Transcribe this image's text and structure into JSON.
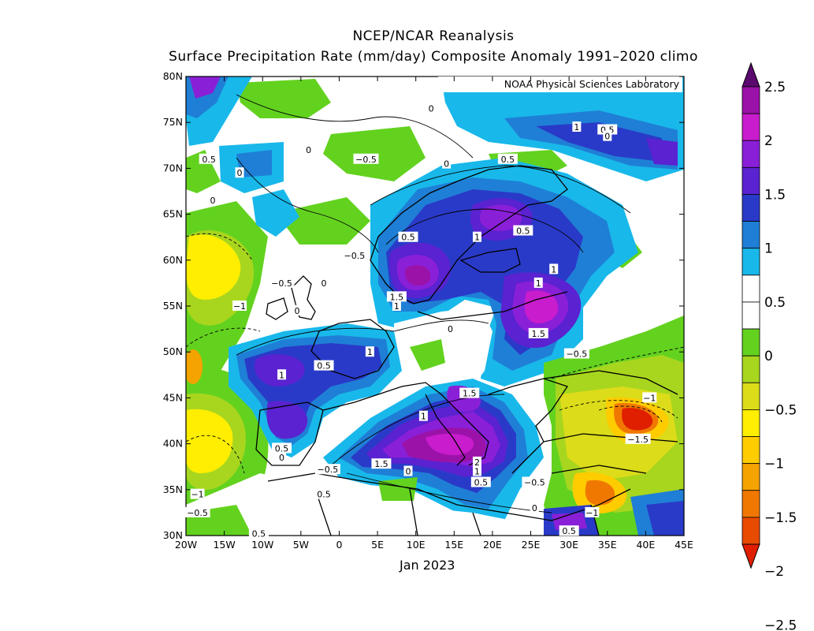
{
  "title": {
    "line1": "NCEP/NCAR Reanalysis",
    "line2": "Surface Precipitation Rate (mm/day) Composite Anomaly 1991–2020 climo"
  },
  "credit": "NOAA Physical Sciences Laboratory",
  "period": "Jan 2023",
  "map": {
    "lat_ticks": [
      "80N",
      "75N",
      "70N",
      "65N",
      "60N",
      "55N",
      "50N",
      "45N",
      "40N",
      "35N",
      "30N"
    ],
    "lon_ticks": [
      "20W",
      "15W",
      "10W",
      "5W",
      "0",
      "5E",
      "10E",
      "15E",
      "20E",
      "25E",
      "30E",
      "35E",
      "40E",
      "45E"
    ],
    "lon_range": [
      -20,
      45
    ],
    "lat_range": [
      30,
      80
    ]
  },
  "colorbar": {
    "labels": [
      "2.5",
      "2",
      "1.5",
      "1",
      "0.5",
      "0",
      "−0.5",
      "−1",
      "−1.5",
      "−2",
      "−2.5"
    ],
    "colors": [
      "#5a0a6e",
      "#9b12a8",
      "#c81ccd",
      "#8a1fd8",
      "#5a22d0",
      "#2a3ac8",
      "#1f7fd6",
      "#19b8ea",
      "#ffffff",
      "#ffffff",
      "#63d21f",
      "#a8d61e",
      "#dcdc1a",
      "#ffee00",
      "#ffcc00",
      "#f5a300",
      "#f07800",
      "#e84a00",
      "#e01e00"
    ]
  },
  "contour_labels": [
    {
      "t": "0.5",
      "lon": -17,
      "lat": 71
    },
    {
      "t": "0",
      "lon": -13,
      "lat": 69.5
    },
    {
      "t": "0",
      "lon": -16.5,
      "lat": 66.5
    },
    {
      "t": "0",
      "lon": -4,
      "lat": 72
    },
    {
      "t": "−0.5",
      "lon": 3.5,
      "lat": 71
    },
    {
      "t": "0",
      "lon": 12,
      "lat": 76.5
    },
    {
      "t": "0",
      "lon": 14,
      "lat": 70.5
    },
    {
      "t": "0.5",
      "lon": 22,
      "lat": 71
    },
    {
      "t": "1",
      "lon": 31,
      "lat": 74.5
    },
    {
      "t": "0.5",
      "lon": 35,
      "lat": 74.2
    },
    {
      "t": "0",
      "lon": 35,
      "lat": 73.5
    },
    {
      "t": "0.5",
      "lon": 9,
      "lat": 62.5
    },
    {
      "t": "1",
      "lon": 18,
      "lat": 62.5
    },
    {
      "t": "0.5",
      "lon": 24,
      "lat": 63.2
    },
    {
      "t": "−0.5",
      "lon": 2,
      "lat": 60.5
    },
    {
      "t": "−0.5",
      "lon": -7.5,
      "lat": 57.5
    },
    {
      "t": "0",
      "lon": -2,
      "lat": 57.5
    },
    {
      "t": "−1",
      "lon": -13,
      "lat": 55
    },
    {
      "t": "0",
      "lon": -5.5,
      "lat": 54.5
    },
    {
      "t": "1.5",
      "lon": 7.5,
      "lat": 56
    },
    {
      "t": "1",
      "lon": 7.5,
      "lat": 55
    },
    {
      "t": "1",
      "lon": 28,
      "lat": 59
    },
    {
      "t": "1",
      "lon": 26,
      "lat": 57.5
    },
    {
      "t": "0",
      "lon": 14.5,
      "lat": 52.5
    },
    {
      "t": "1.5",
      "lon": 26,
      "lat": 52
    },
    {
      "t": "−0.5",
      "lon": 31,
      "lat": 49.8
    },
    {
      "t": "1",
      "lon": 4,
      "lat": 50
    },
    {
      "t": "0.5",
      "lon": -2,
      "lat": 48.5
    },
    {
      "t": "1",
      "lon": -7.5,
      "lat": 47.5
    },
    {
      "t": "1.5",
      "lon": 17,
      "lat": 45.5
    },
    {
      "t": "1",
      "lon": 11,
      "lat": 43
    },
    {
      "t": "−1",
      "lon": 40.5,
      "lat": 45
    },
    {
      "t": "−1.5",
      "lon": 39,
      "lat": 40.5
    },
    {
      "t": "0.5",
      "lon": -7.5,
      "lat": 39.5
    },
    {
      "t": "0",
      "lon": -7.5,
      "lat": 38.5
    },
    {
      "t": "−0.5",
      "lon": -1.5,
      "lat": 37.2
    },
    {
      "t": "1.5",
      "lon": 5.5,
      "lat": 37.8
    },
    {
      "t": "0",
      "lon": 9,
      "lat": 37
    },
    {
      "t": "2",
      "lon": 18,
      "lat": 38
    },
    {
      "t": "1",
      "lon": 18,
      "lat": 37
    },
    {
      "t": "0.5",
      "lon": 18.5,
      "lat": 35.8
    },
    {
      "t": "−0.5",
      "lon": 25.5,
      "lat": 35.8
    },
    {
      "t": "0.5",
      "lon": -2,
      "lat": 34.5
    },
    {
      "t": "−1",
      "lon": -18.5,
      "lat": 34.5
    },
    {
      "t": "−0.5",
      "lon": -18.5,
      "lat": 32.5
    },
    {
      "t": "−1",
      "lon": 33,
      "lat": 32.5
    },
    {
      "t": "0",
      "lon": 25.5,
      "lat": 33
    },
    {
      "t": "0.5",
      "lon": 30,
      "lat": 30.5
    },
    {
      "t": "0.5",
      "lon": -10.5,
      "lat": 30.2
    }
  ]
}
